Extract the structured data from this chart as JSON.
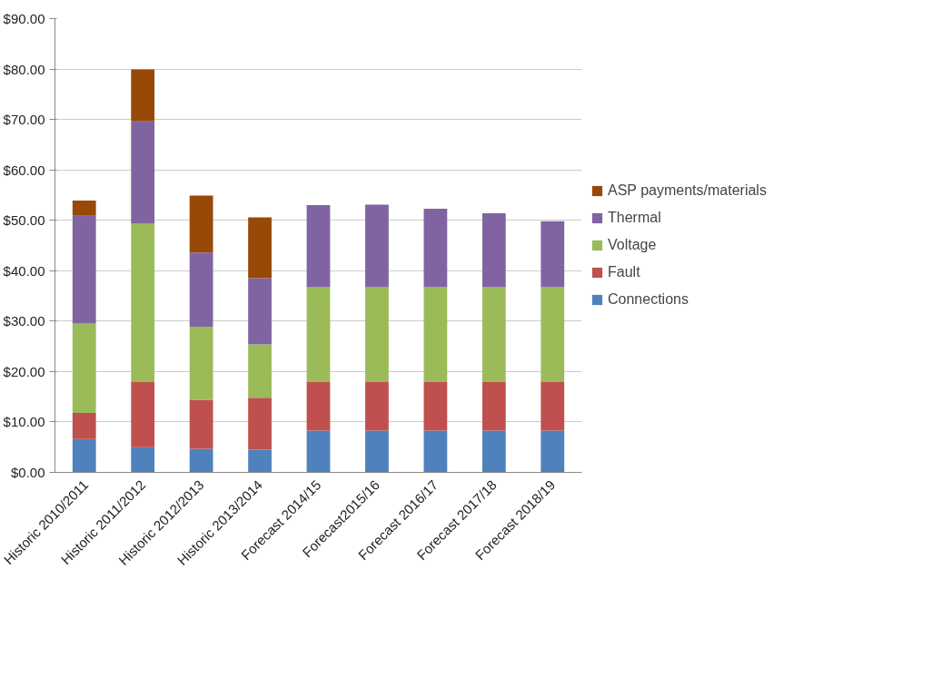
{
  "chart_data": {
    "type": "bar",
    "stacked": true,
    "categories": [
      "Historic 2010/2011",
      "Historic 2011/2012",
      "Historic 2012/2013",
      "Historic 2013/2014",
      "Forecast 2014/15",
      "Forecast2015/16",
      "Forecast 2016/17",
      "Forecast 2017/18",
      "Forecast 2018/19"
    ],
    "series": [
      {
        "name": "Connections",
        "color": "#4f81bd",
        "values": [
          6.6,
          5.0,
          4.7,
          4.5,
          8.3,
          8.3,
          8.3,
          8.3,
          8.3
        ]
      },
      {
        "name": "Fault",
        "color": "#c0504d",
        "values": [
          5.2,
          12.9,
          9.7,
          10.3,
          9.6,
          9.6,
          9.6,
          9.6,
          9.6
        ]
      },
      {
        "name": "Voltage",
        "color": "#9bbb59",
        "values": [
          17.7,
          31.4,
          14.5,
          10.6,
          18.8,
          18.8,
          18.8,
          18.8,
          18.8
        ]
      },
      {
        "name": "Thermal",
        "color": "#8064a2",
        "values": [
          21.4,
          20.3,
          14.7,
          13.1,
          16.3,
          16.4,
          15.6,
          14.7,
          13.1
        ]
      },
      {
        "name": "ASP payments/materials",
        "color": "#984807",
        "values": [
          3.0,
          10.3,
          11.3,
          12.1,
          null,
          null,
          null,
          null,
          null
        ]
      }
    ],
    "ylim": [
      0,
      90
    ],
    "yticks": [
      {
        "value": 0,
        "label": "$0.00"
      },
      {
        "value": 10,
        "label": "$10.00"
      },
      {
        "value": 20,
        "label": "$20.00"
      },
      {
        "value": 30,
        "label": "$30.00"
      },
      {
        "value": 40,
        "label": "$40.00"
      },
      {
        "value": 50,
        "label": "$50.00"
      },
      {
        "value": 60,
        "label": "$60.00"
      },
      {
        "value": 70,
        "label": "$70.00"
      },
      {
        "value": 80,
        "label": "$80.00"
      },
      {
        "value": 90,
        "label": "$90.00"
      }
    ],
    "grid": "y",
    "legend": "right"
  }
}
